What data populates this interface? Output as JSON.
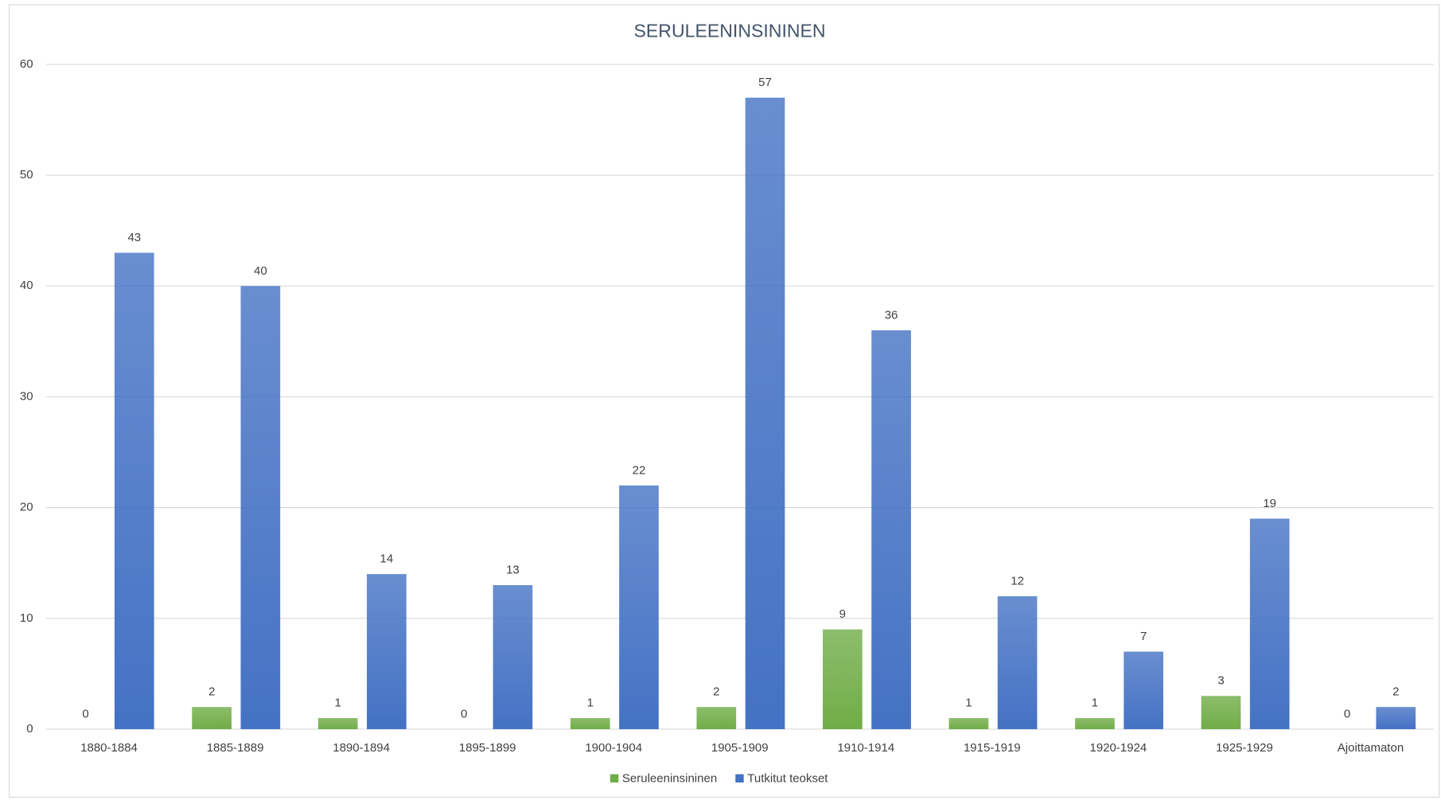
{
  "chart_data": {
    "type": "bar",
    "title": "SERULEENINSININEN",
    "categories": [
      "1880-1884",
      "1885-1889",
      "1890-1894",
      "1895-1899",
      "1900-1904",
      "1905-1909",
      "1910-1914",
      "1915-1919",
      "1920-1924",
      "1925-1929",
      "Ajoittamaton"
    ],
    "series": [
      {
        "name": "Seruleeninsininen",
        "color": "#70ad47",
        "values": [
          0,
          2,
          1,
          0,
          1,
          2,
          9,
          1,
          1,
          3,
          0
        ]
      },
      {
        "name": "Tutkitut teokset",
        "color": "#4472c4",
        "values": [
          43,
          40,
          14,
          13,
          22,
          57,
          36,
          12,
          7,
          19,
          2
        ]
      }
    ],
    "ylim": [
      0,
      60
    ],
    "yticks": [
      0,
      10,
      20,
      30,
      40,
      50,
      60
    ],
    "grid": true,
    "legend": "bottom"
  }
}
